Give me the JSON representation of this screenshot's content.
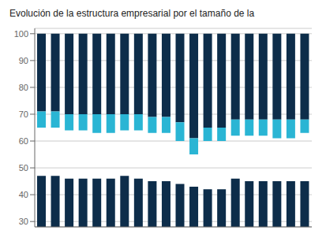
{
  "chart_data": {
    "type": "bar",
    "title": "Evolución de la estructura empresarial por el tamaño de la",
    "ylim": [
      28,
      102
    ],
    "yticks": [
      30,
      40,
      50,
      60,
      70,
      80,
      90,
      100
    ],
    "grid": true,
    "tick_labels": "y",
    "series": [
      {
        "color": "#0d2d4a",
        "values": [
          100,
          100,
          100,
          100,
          100,
          100,
          100,
          100,
          100,
          100,
          100,
          100,
          100,
          100,
          100,
          100,
          100,
          100,
          100,
          100
        ],
        "bottoms": [
          71,
          71,
          70,
          70,
          70,
          70,
          70,
          70,
          69,
          69,
          67,
          61,
          65,
          65,
          68,
          68,
          68,
          68,
          68,
          68
        ]
      },
      {
        "color": "#2ab5d4",
        "values": [
          71,
          71,
          70,
          70,
          70,
          70,
          70,
          70,
          69,
          69,
          67,
          61,
          65,
          65,
          68,
          68,
          68,
          68,
          68,
          68
        ],
        "bottoms": [
          65,
          65,
          64,
          64,
          63,
          63,
          64,
          64,
          63,
          63,
          60,
          55,
          60,
          60,
          62,
          62,
          62,
          61,
          61,
          63
        ]
      },
      {
        "color": "#0d2d4a",
        "values": [
          47,
          47,
          46,
          46,
          46,
          46,
          47,
          46,
          45,
          45,
          44,
          43,
          42,
          42,
          46,
          45,
          45,
          45,
          45,
          45
        ]
      }
    ]
  }
}
